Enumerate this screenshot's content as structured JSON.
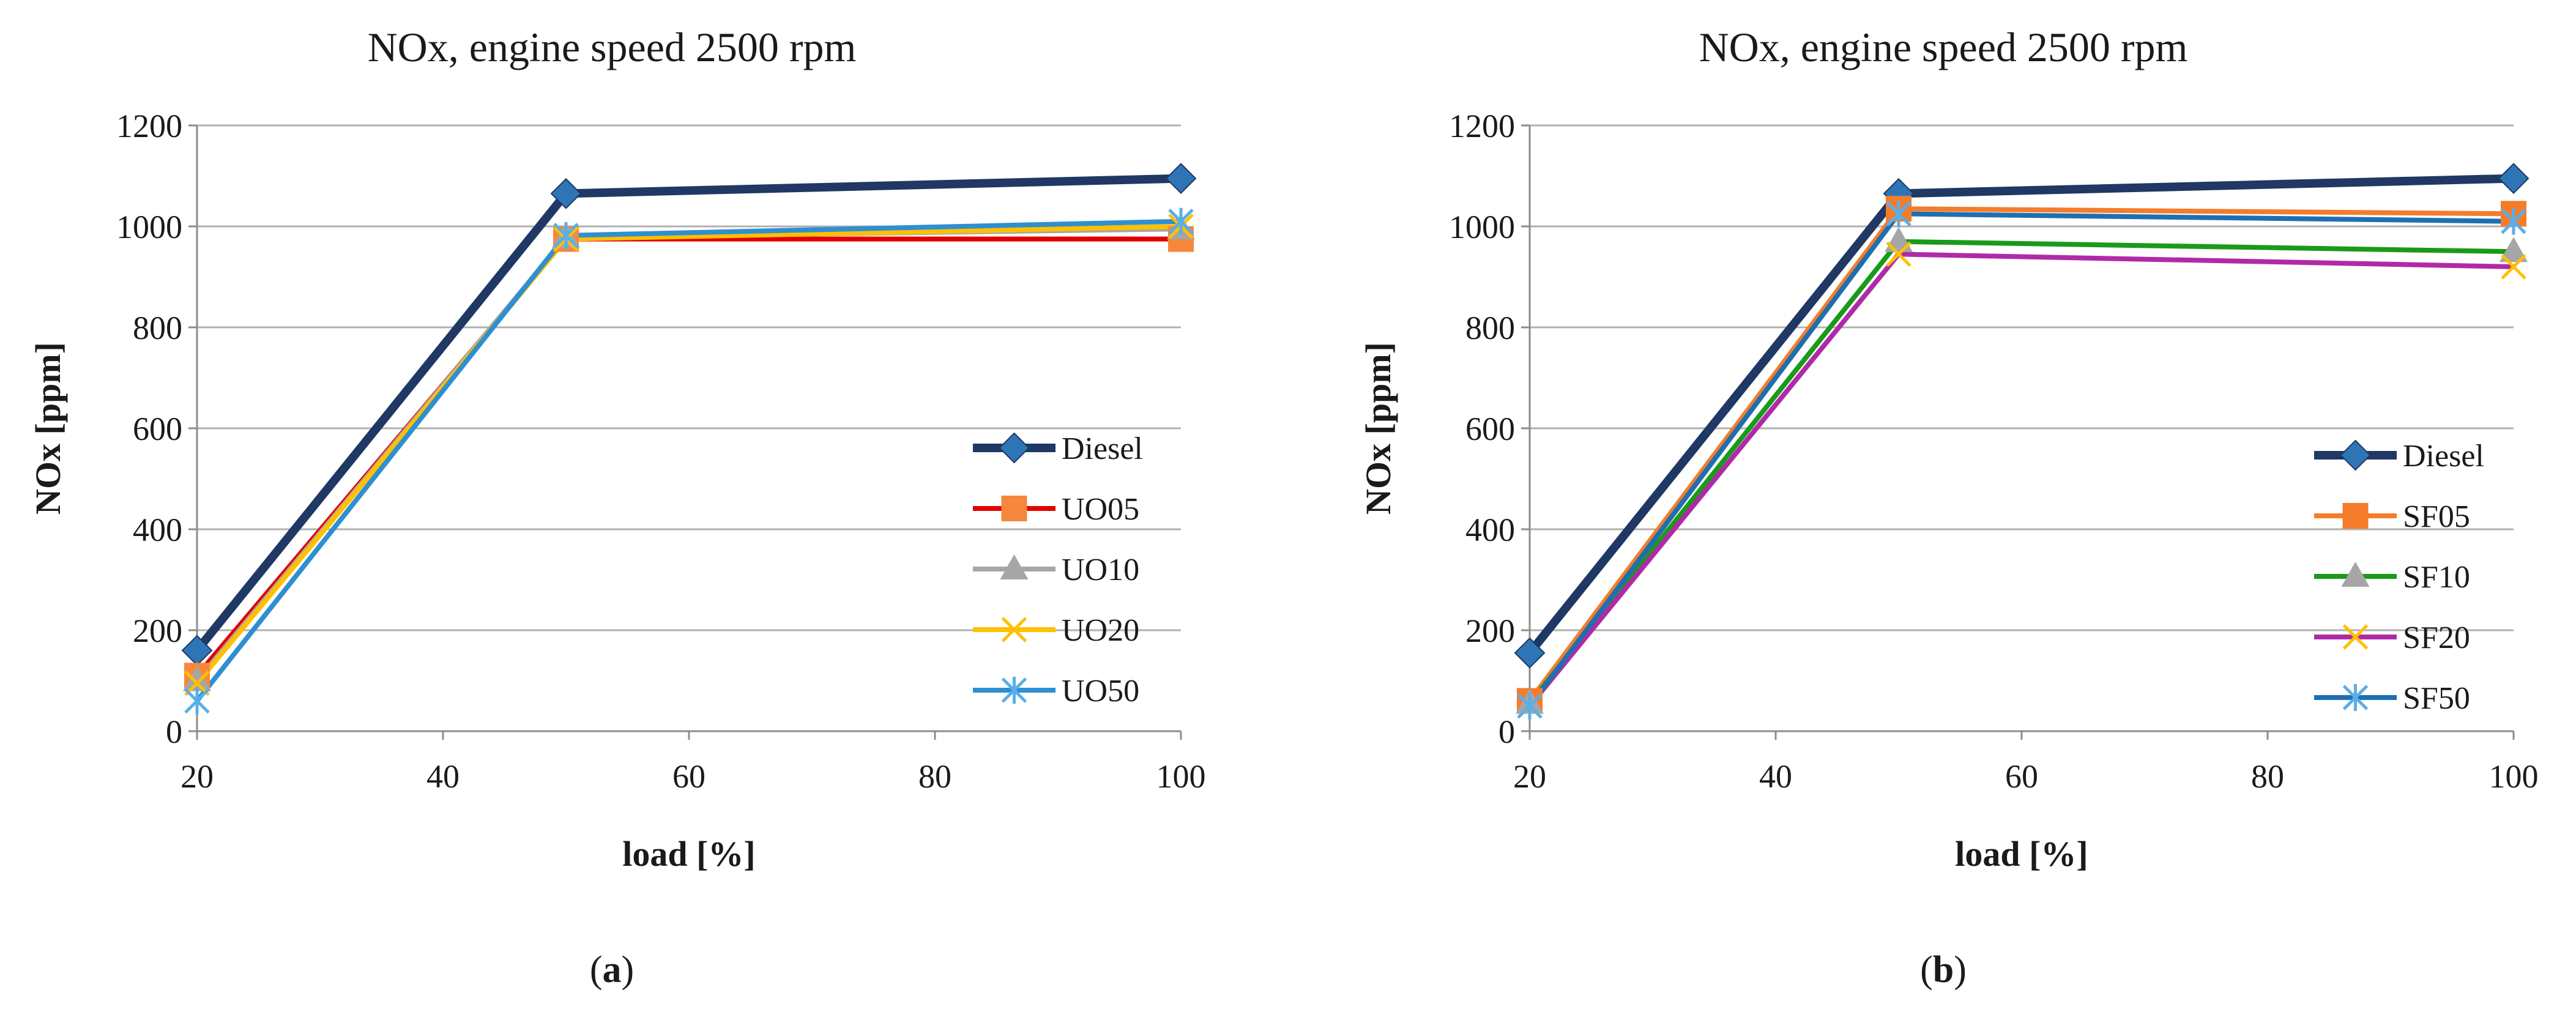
{
  "chart_data": [
    {
      "panel": "(a)",
      "panel_text": {
        "open": "(",
        "letter": "a",
        "close": ")"
      },
      "type": "line",
      "title": "NOx, engine speed 2500 rpm",
      "xlabel": "load [%]",
      "ylabel": "NOx [ppm]",
      "xlim": [
        20,
        100
      ],
      "ylim": [
        0,
        1200
      ],
      "xticks": [
        20,
        40,
        60,
        80,
        100
      ],
      "yticks": [
        0,
        200,
        400,
        600,
        800,
        1000,
        1200
      ],
      "grid": "horizontal",
      "legend": "lower-right",
      "x": [
        20,
        50,
        100
      ],
      "series": [
        {
          "name": "Diesel",
          "values": [
            160,
            1065,
            1095
          ],
          "color": "#1f3864",
          "marker": "diamond",
          "marker_color": "#2e75b6"
        },
        {
          "name": "UO05",
          "values": [
            110,
            975,
            975
          ],
          "color": "#e00000",
          "marker": "square",
          "marker_color": "#f5883c"
        },
        {
          "name": "UO10",
          "values": [
            100,
            978,
            995
          ],
          "color": "#a6a6a6",
          "marker": "triangle",
          "marker_color": "#a6a6a6"
        },
        {
          "name": "UO20",
          "values": [
            95,
            975,
            1000
          ],
          "color": "#ffc000",
          "marker": "x",
          "marker_color": "#ffc000"
        },
        {
          "name": "UO50",
          "values": [
            60,
            982,
            1010
          ],
          "color": "#2e8fd1",
          "marker": "asterisk",
          "marker_color": "#5aaee8"
        }
      ]
    },
    {
      "panel": "(b)",
      "panel_text": {
        "open": "(",
        "letter": "b",
        "close": ")"
      },
      "type": "line",
      "title": "NOx, engine speed 2500 rpm",
      "xlabel": "load [%]",
      "ylabel": "NOx [ppm]",
      "xlim": [
        20,
        100
      ],
      "ylim": [
        0,
        1200
      ],
      "xticks": [
        20,
        40,
        60,
        80,
        100
      ],
      "yticks": [
        0,
        200,
        400,
        600,
        800,
        1000,
        1200
      ],
      "grid": "horizontal",
      "legend": "lower-right",
      "x": [
        20,
        50,
        100
      ],
      "series": [
        {
          "name": "Diesel",
          "values": [
            155,
            1065,
            1095
          ],
          "color": "#1f3864",
          "marker": "diamond",
          "marker_color": "#2e75b6"
        },
        {
          "name": "SF05",
          "values": [
            60,
            1035,
            1025
          ],
          "color": "#f47c2a",
          "marker": "square",
          "marker_color": "#f47c2a"
        },
        {
          "name": "SF10",
          "values": [
            55,
            970,
            950
          ],
          "color": "#1a9a1a",
          "marker": "triangle",
          "marker_color": "#a6a6a6"
        },
        {
          "name": "SF20",
          "values": [
            50,
            945,
            920
          ],
          "color": "#b02aa8",
          "marker": "x",
          "marker_color": "#ffc000"
        },
        {
          "name": "SF50",
          "values": [
            50,
            1025,
            1010
          ],
          "color": "#1f6fb0",
          "marker": "asterisk",
          "marker_color": "#5aaee8"
        }
      ]
    }
  ]
}
